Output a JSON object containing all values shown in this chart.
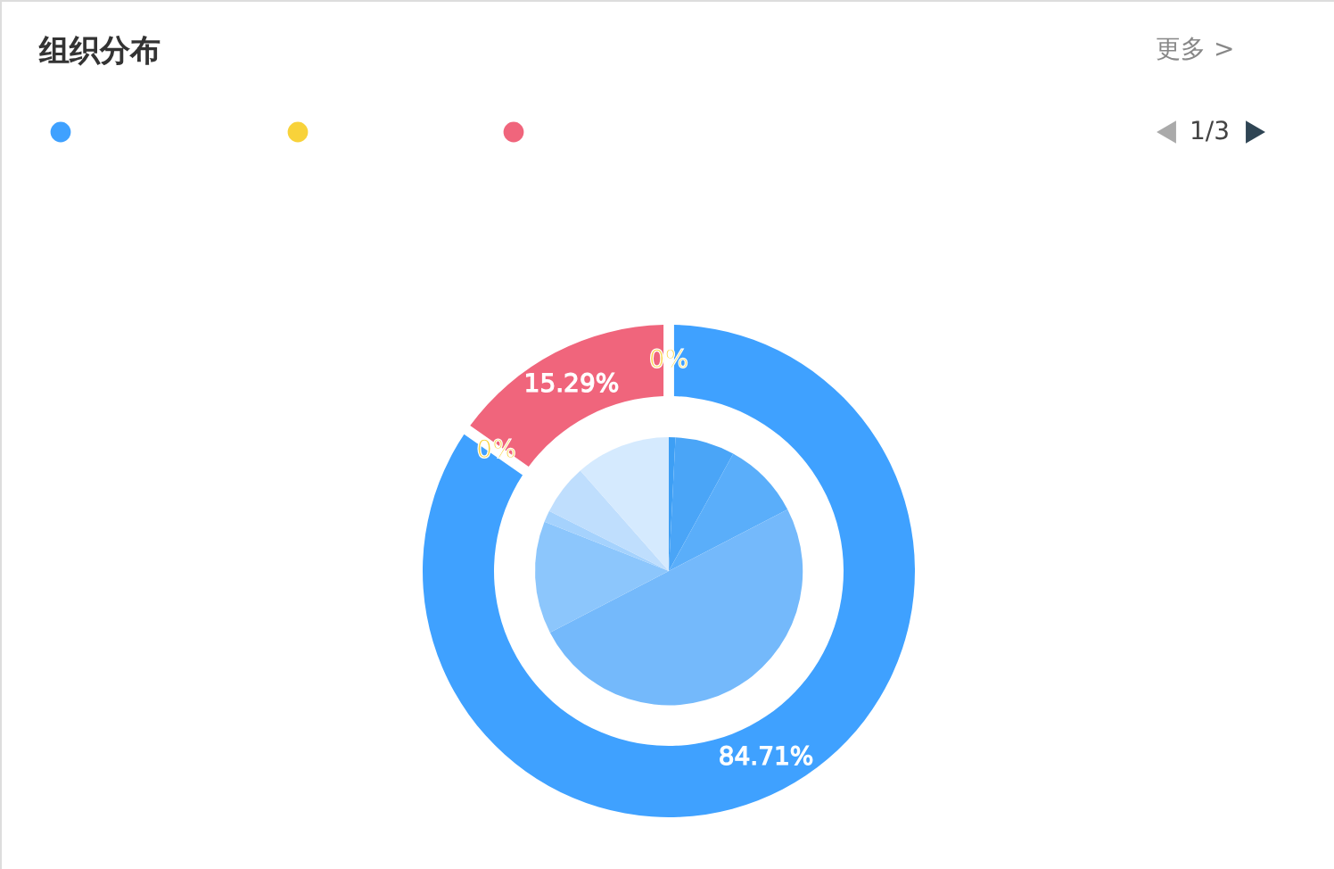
{
  "chart_data": {
    "type": "donut",
    "title": "组织分布",
    "annotations": [
      "更多 >",
      "1/3"
    ],
    "series": [
      {
        "values": [
          84.71,
          0,
          15.29,
          0
        ],
        "colors": [
          "#3fa1ff",
          "#f8d23a",
          "#f0657c",
          "#fbd444"
        ],
        "value_labels": [
          "84.71%",
          "0%",
          "15.29%",
          "0%"
        ]
      },
      {
        "type": "pie",
        "values": [
          0.8,
          7.2,
          9.4,
          50,
          13.6,
          1.4,
          6.1,
          11.5
        ],
        "colors": [
          "#3d9ff5",
          "#4aa5f7",
          "#5aaefa",
          "#74b9fb",
          "#8cc6fc",
          "#a5d2fd",
          "#bfdefd",
          "#d5eafe"
        ]
      }
    ]
  }
}
